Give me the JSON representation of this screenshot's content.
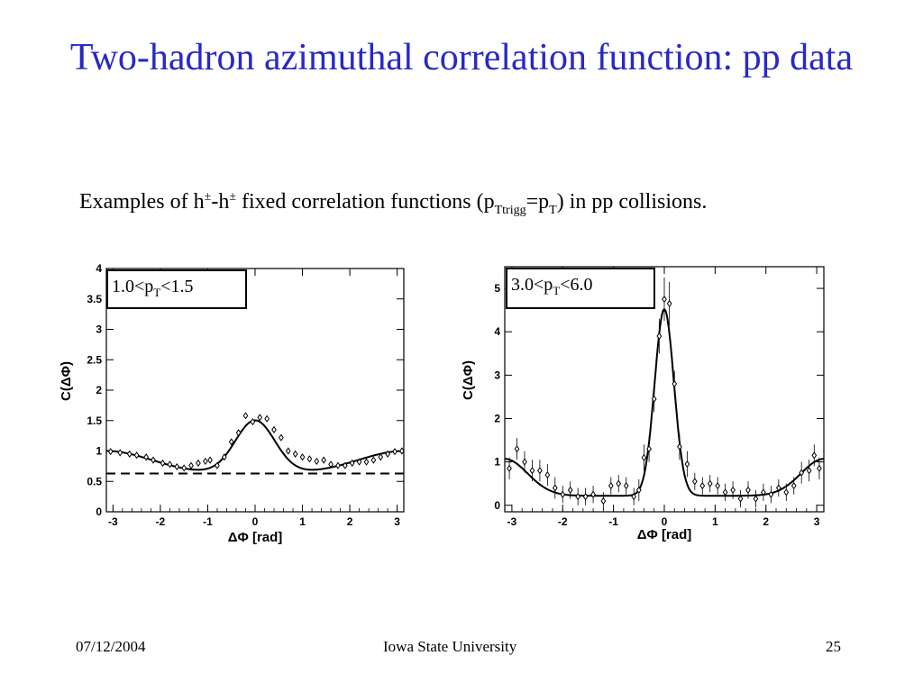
{
  "slide": {
    "title": "Two-hadron azimuthal correlation function: pp data",
    "subtitle": {
      "pre": "Examples of h",
      "pm1": "±",
      "mid": "-h",
      "pm2": "±",
      "post1": " fixed correlation functions (p",
      "sub1": "Ttrigg",
      "eq": "=p",
      "sub2": "T",
      "post2": ") in pp collisions."
    }
  },
  "footer": {
    "date": "07/12/2004",
    "center": "Iowa State University",
    "page": "25"
  },
  "chart_data": [
    {
      "type": "scatter",
      "legend": {
        "pre": "1.0<p",
        "sub": "T",
        "post": "<1.5"
      },
      "xlabel": "ΔΦ  [rad]",
      "ylabel": "C(ΔΦ)",
      "xlim": [
        -3.14,
        3.14
      ],
      "ylim": [
        0,
        4
      ],
      "xticks": [
        "-3",
        "-2",
        "-1",
        "0",
        "1",
        "2",
        "3"
      ],
      "yticks": [
        "0",
        "0.5",
        "1",
        "1.5",
        "2",
        "2.5",
        "3",
        "3.5",
        "4"
      ],
      "baseline": 0.63,
      "points": [
        {
          "x": -3.05,
          "y": 0.99
        },
        {
          "x": -2.85,
          "y": 0.97
        },
        {
          "x": -2.65,
          "y": 0.95
        },
        {
          "x": -2.5,
          "y": 0.93
        },
        {
          "x": -2.3,
          "y": 0.9
        },
        {
          "x": -2.15,
          "y": 0.85
        },
        {
          "x": -1.95,
          "y": 0.8
        },
        {
          "x": -1.8,
          "y": 0.78
        },
        {
          "x": -1.65,
          "y": 0.74
        },
        {
          "x": -1.5,
          "y": 0.72
        },
        {
          "x": -1.35,
          "y": 0.76
        },
        {
          "x": -1.2,
          "y": 0.8
        },
        {
          "x": -1.05,
          "y": 0.83
        },
        {
          "x": -0.95,
          "y": 0.85
        },
        {
          "x": -0.8,
          "y": 0.76
        },
        {
          "x": -0.65,
          "y": 0.9
        },
        {
          "x": -0.5,
          "y": 1.15
        },
        {
          "x": -0.35,
          "y": 1.3
        },
        {
          "x": -0.2,
          "y": 1.58
        },
        {
          "x": -0.05,
          "y": 1.48
        },
        {
          "x": 0.1,
          "y": 1.55
        },
        {
          "x": 0.25,
          "y": 1.53
        },
        {
          "x": 0.4,
          "y": 1.35
        },
        {
          "x": 0.55,
          "y": 1.22
        },
        {
          "x": 0.7,
          "y": 1.0
        },
        {
          "x": 0.85,
          "y": 0.95
        },
        {
          "x": 1.0,
          "y": 0.9
        },
        {
          "x": 1.15,
          "y": 0.87
        },
        {
          "x": 1.3,
          "y": 0.83
        },
        {
          "x": 1.45,
          "y": 0.85
        },
        {
          "x": 1.6,
          "y": 0.78
        },
        {
          "x": 1.75,
          "y": 0.76
        },
        {
          "x": 1.9,
          "y": 0.76
        },
        {
          "x": 2.05,
          "y": 0.8
        },
        {
          "x": 2.2,
          "y": 0.82
        },
        {
          "x": 2.35,
          "y": 0.82
        },
        {
          "x": 2.5,
          "y": 0.85
        },
        {
          "x": 2.65,
          "y": 0.9
        },
        {
          "x": 2.8,
          "y": 0.95
        },
        {
          "x": 2.95,
          "y": 0.99
        },
        {
          "x": 3.1,
          "y": 1.0
        }
      ],
      "fit": {
        "baseline": 0.63,
        "near": {
          "amp": 0.87,
          "sigma": 0.42
        },
        "away": {
          "amp": 0.37,
          "sigma": 0.95
        }
      }
    },
    {
      "type": "scatter",
      "legend": {
        "pre": "3.0<p",
        "sub": "T",
        "post": "<6.0"
      },
      "xlabel": "ΔΦ  [rad]",
      "ylabel": "C(ΔΦ)",
      "xlim": [
        -3.14,
        3.14
      ],
      "ylim": [
        -0.15,
        5.5
      ],
      "xticks": [
        "-3",
        "-2",
        "-1",
        "0",
        "1",
        "2",
        "3"
      ],
      "yticks": [
        "0",
        "1",
        "2",
        "3",
        "4",
        "5"
      ],
      "points": [
        {
          "x": -3.05,
          "y": 0.85,
          "err": 0.25
        },
        {
          "x": -2.9,
          "y": 1.3,
          "err": 0.25
        },
        {
          "x": -2.75,
          "y": 1.0,
          "err": 0.25
        },
        {
          "x": -2.6,
          "y": 0.8,
          "err": 0.25
        },
        {
          "x": -2.45,
          "y": 0.8,
          "err": 0.25
        },
        {
          "x": -2.3,
          "y": 0.7,
          "err": 0.25
        },
        {
          "x": -2.15,
          "y": 0.4,
          "err": 0.25
        },
        {
          "x": -2.0,
          "y": 0.25,
          "err": 0.2
        },
        {
          "x": -1.85,
          "y": 0.35,
          "err": 0.2
        },
        {
          "x": -1.7,
          "y": 0.2,
          "err": 0.2
        },
        {
          "x": -1.55,
          "y": 0.2,
          "err": 0.2
        },
        {
          "x": -1.4,
          "y": 0.25,
          "err": 0.2
        },
        {
          "x": -1.2,
          "y": 0.1,
          "err": 0.2
        },
        {
          "x": -1.05,
          "y": 0.45,
          "err": 0.2
        },
        {
          "x": -0.9,
          "y": 0.5,
          "err": 0.2
        },
        {
          "x": -0.75,
          "y": 0.45,
          "err": 0.2
        },
        {
          "x": -0.6,
          "y": 0.2,
          "err": 0.2
        },
        {
          "x": -0.5,
          "y": 0.35,
          "err": 0.25
        },
        {
          "x": -0.4,
          "y": 1.1,
          "err": 0.3
        },
        {
          "x": -0.3,
          "y": 1.3,
          "err": 0.3
        },
        {
          "x": -0.2,
          "y": 2.45,
          "err": 0.3
        },
        {
          "x": -0.1,
          "y": 3.9,
          "err": 0.4
        },
        {
          "x": 0.0,
          "y": 4.75,
          "err": 0.5
        },
        {
          "x": 0.1,
          "y": 4.65,
          "err": 0.5
        },
        {
          "x": 0.2,
          "y": 2.8,
          "err": 0.3
        },
        {
          "x": 0.3,
          "y": 1.35,
          "err": 0.3
        },
        {
          "x": 0.45,
          "y": 0.95,
          "err": 0.3
        },
        {
          "x": 0.6,
          "y": 0.55,
          "err": 0.2
        },
        {
          "x": 0.75,
          "y": 0.45,
          "err": 0.2
        },
        {
          "x": 0.9,
          "y": 0.5,
          "err": 0.2
        },
        {
          "x": 1.05,
          "y": 0.45,
          "err": 0.2
        },
        {
          "x": 1.2,
          "y": 0.3,
          "err": 0.2
        },
        {
          "x": 1.35,
          "y": 0.35,
          "err": 0.2
        },
        {
          "x": 1.5,
          "y": 0.15,
          "err": 0.2
        },
        {
          "x": 1.65,
          "y": 0.35,
          "err": 0.2
        },
        {
          "x": 1.8,
          "y": 0.15,
          "err": 0.2
        },
        {
          "x": 1.95,
          "y": 0.3,
          "err": 0.2
        },
        {
          "x": 2.1,
          "y": 0.25,
          "err": 0.2
        },
        {
          "x": 2.25,
          "y": 0.4,
          "err": 0.2
        },
        {
          "x": 2.4,
          "y": 0.3,
          "err": 0.2
        },
        {
          "x": 2.55,
          "y": 0.45,
          "err": 0.2
        },
        {
          "x": 2.7,
          "y": 0.75,
          "err": 0.25
        },
        {
          "x": 2.85,
          "y": 0.8,
          "err": 0.25
        },
        {
          "x": 2.95,
          "y": 1.15,
          "err": 0.25
        },
        {
          "x": 3.05,
          "y": 0.85,
          "err": 0.25
        }
      ],
      "fit": {
        "baseline": 0.22,
        "near": {
          "amp": 4.3,
          "sigma": 0.19
        },
        "away": {
          "amp": 0.85,
          "sigma": 0.45
        }
      }
    }
  ]
}
